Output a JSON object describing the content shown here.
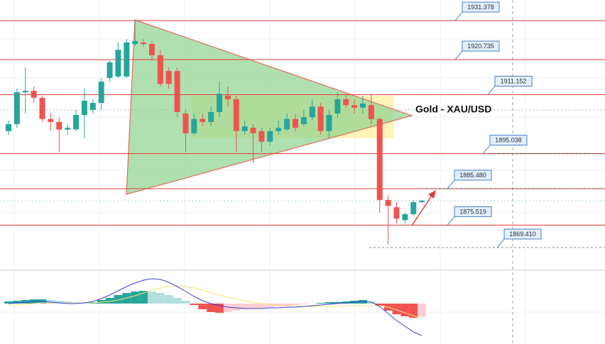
{
  "chart_data": {
    "type": "candlestick",
    "title": "Gold - XAU/USD",
    "open": [
      1901.2,
      1903.1,
      1911.8,
      1912.2,
      1910.3,
      1904.5,
      1903.7,
      1901.6,
      1901.7,
      1905.6,
      1907.0,
      1908.9,
      1915.7,
      1916.1,
      1916.1,
      1925.0,
      1925.4,
      1925.0,
      1921.9,
      1917.6,
      1917.6,
      1906.0,
      1900.6,
      1904.5,
      1903.7,
      1906.4,
      1910.9,
      1909.9,
      1901.2,
      1902.1,
      1901.2,
      1898.3,
      1901.2,
      1901.7,
      1904.5,
      1903.1,
      1905.0,
      1907.9,
      1901.2,
      1906.0,
      1909.9,
      1908.3,
      1907.6,
      1908.3,
      1904.5,
      1882.4,
      1880.4,
      1876.9,
      1878.5,
      1881.8
    ],
    "high": [
      1904.1,
      1912.8,
      1918.6,
      1913.4,
      1910.9,
      1906.0,
      1905.0,
      1903.1,
      1907.0,
      1912.8,
      1909.9,
      1915.7,
      1920.5,
      1925.4,
      1926.3,
      1931.6,
      1926.3,
      1925.8,
      1923.4,
      1918.6,
      1918.6,
      1907.0,
      1906.0,
      1906.0,
      1907.9,
      1914.7,
      1913.4,
      1910.9,
      1904.1,
      1903.1,
      1902.1,
      1902.1,
      1904.1,
      1906.0,
      1906.0,
      1907.0,
      1909.9,
      1908.9,
      1907.0,
      1911.8,
      1911.4,
      1909.9,
      1910.9,
      1911.4,
      1905.0,
      1883.7,
      1881.8,
      1878.9,
      1882.4,
      1882.4
    ],
    "low": [
      1900.2,
      1902.1,
      1906.0,
      1908.9,
      1903.7,
      1901.2,
      1895.4,
      1900.2,
      1901.2,
      1899.2,
      1906.0,
      1907.0,
      1914.7,
      1915.7,
      1915.7,
      1924.4,
      1924.4,
      1920.5,
      1913.4,
      1912.8,
      1905.0,
      1895.4,
      1900.2,
      1902.5,
      1902.5,
      1905.0,
      1907.9,
      1895.4,
      1900.2,
      1892.4,
      1895.4,
      1897.3,
      1900.2,
      1901.2,
      1901.2,
      1902.5,
      1904.1,
      1900.2,
      1899.2,
      1905.0,
      1907.6,
      1906.0,
      1906.0,
      1903.1,
      1878.9,
      1870.2,
      1876.0,
      1876.0,
      1878.1,
      1881.6
    ],
    "close": [
      1903.1,
      1911.8,
      1912.2,
      1910.3,
      1904.5,
      1903.7,
      1901.6,
      1902.1,
      1905.6,
      1909.5,
      1908.9,
      1914.7,
      1920.0,
      1923.4,
      1925.4,
      1925.8,
      1925.0,
      1921.9,
      1914.1,
      1914.1,
      1906.4,
      1900.6,
      1904.5,
      1903.7,
      1906.4,
      1911.4,
      1909.9,
      1901.2,
      1902.5,
      1900.6,
      1898.3,
      1901.2,
      1902.1,
      1904.5,
      1902.1,
      1905.0,
      1907.9,
      1901.2,
      1905.6,
      1909.9,
      1908.3,
      1907.6,
      1908.7,
      1904.5,
      1882.4,
      1880.8,
      1877.3,
      1878.5,
      1881.8,
      1882.2
    ],
    "up_color": "#26a69a",
    "down_color": "#ef5350",
    "ylim": [
      1863.4,
      1937.0
    ],
    "level_color": "#e53935",
    "levels": [
      {
        "value": 1931.378,
        "label": "1931.378"
      },
      {
        "value": 1920.735,
        "label": "1920.735"
      },
      {
        "value": 1911.152,
        "label": "1911.152"
      },
      {
        "value": 1895.038,
        "label": "1895.038"
      },
      {
        "value": 1885.48,
        "label": "1885.480"
      },
      {
        "value": 1875.519,
        "label": "1875.519"
      },
      {
        "value": 1869.41,
        "label": "1869.410"
      }
    ],
    "indicator": {
      "type": "macd",
      "ylim": [
        -57,
        46
      ],
      "histogram": [
        3,
        4,
        5,
        6,
        6,
        5,
        4,
        3,
        2,
        1,
        2,
        5,
        8,
        12,
        15,
        17,
        18,
        17,
        15,
        12,
        8,
        4,
        -2,
        -8,
        -12,
        -13,
        -12,
        -10,
        -8,
        -7,
        -6,
        -5,
        -4,
        -3,
        -2,
        -1,
        0,
        1,
        2,
        2,
        3,
        4,
        5,
        3,
        -3,
        -10,
        -15,
        -18,
        -20,
        -18
      ],
      "macd": [
        0,
        1,
        2,
        3,
        3,
        2,
        1,
        0,
        0,
        1,
        3,
        7,
        12,
        18,
        24,
        29,
        33,
        35,
        34,
        30,
        24,
        17,
        10,
        4,
        0,
        -3,
        -5,
        -6,
        -7,
        -7,
        -7,
        -6,
        -6,
        -5,
        -5,
        -4,
        -3,
        -2,
        -1,
        0,
        1,
        2,
        3,
        2,
        -4,
        -14,
        -24,
        -32,
        -40,
        -45
      ],
      "signal": [
        -2,
        -2,
        -1,
        0,
        1,
        1,
        1,
        1,
        1,
        1,
        1,
        2,
        3,
        5,
        8,
        11,
        15,
        19,
        22,
        24,
        25,
        24,
        22,
        19,
        15,
        12,
        9,
        7,
        4,
        2,
        0,
        -1,
        -2,
        -3,
        -3,
        -4,
        -4,
        -4,
        -4,
        -4,
        -3,
        -3,
        -3,
        -3,
        -3,
        -5,
        -9,
        -13,
        -17,
        -21
      ],
      "macd_color": "#3f3fd8",
      "signal_color": "#f5e47a",
      "hist_colors": {
        "up_strong": "#26a69a",
        "up_weak": "#b2dfdb",
        "down_strong": "#ef5350",
        "down_weak": "#ffcdd2"
      }
    }
  }
}
